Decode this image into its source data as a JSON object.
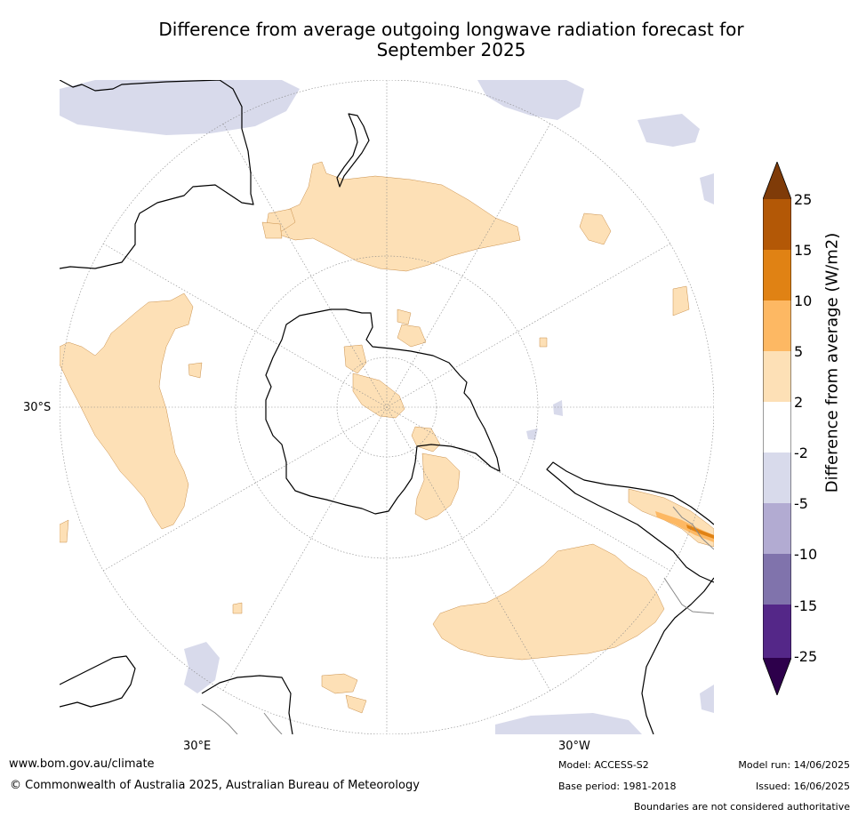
{
  "title_line1": "Difference from average outgoing longwave radiation forecast for",
  "title_line2": "September 2025",
  "map": {
    "labels": {
      "lat_30s": "30°S",
      "lon_30e": "30°E",
      "lon_30w": "30°W"
    },
    "colors": {
      "pos_2_5": "#fde0b6",
      "pos_5_10": "#fdb863",
      "pos_10_15": "#e08214",
      "pos_15_25": "#b35806",
      "pos_gt_25": "#7f3b08",
      "neg_2_5": "#d8daeb",
      "neg_5_10": "#b2abd2",
      "neg_10_15": "#8073ac",
      "neg_15_25": "#542788",
      "neg_lt_25": "#2d004b",
      "neutral": "#ffffff",
      "coast": "#000000"
    }
  },
  "colorbar": {
    "label": "Difference from average (W/m2)",
    "ticks": [
      "25",
      "15",
      "10",
      "5",
      "2",
      "-2",
      "-5",
      "-10",
      "-15",
      "-25"
    ]
  },
  "footer": {
    "url": "www.bom.gov.au/climate",
    "copyright": "© Commonwealth of Australia 2025, Australian Bureau of Meteorology",
    "model": "Model: ACCESS-S2",
    "base_period": "Base period: 1981-2018",
    "model_run": "Model run: 14/06/2025",
    "issued": "Issued: 16/06/2025",
    "disclaimer": "Boundaries are not considered authoritative"
  }
}
